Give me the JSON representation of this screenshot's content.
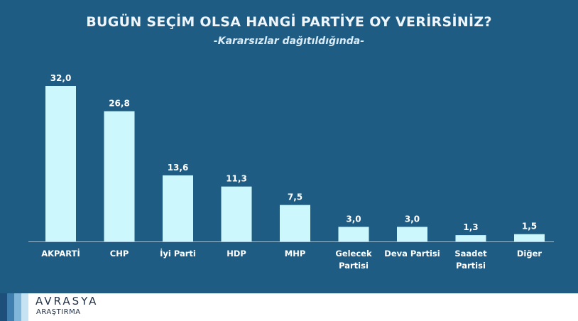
{
  "chart_data": {
    "type": "bar",
    "title": "BUGÜN SEÇİM OLSA HANGİ PARTİYE OY VERİRSİNİZ?",
    "subtitle": "-Kararsızlar dağıtıldığında-",
    "categories": [
      "AKPARTİ",
      "CHP",
      "İyi Parti",
      "HDP",
      "MHP",
      "Gelecek Partisi",
      "Deva Partisi",
      "Saadet Partisi",
      "Diğer"
    ],
    "category_lines": [
      [
        "AKPARTİ"
      ],
      [
        "CHP"
      ],
      [
        "İyi Parti"
      ],
      [
        "HDP"
      ],
      [
        "MHP"
      ],
      [
        "Gelecek",
        "Partisi"
      ],
      [
        "Deva Partisi"
      ],
      [
        "Saadet",
        "Partisi"
      ],
      [
        "Diğer"
      ]
    ],
    "values": [
      32.0,
      26.8,
      13.6,
      11.3,
      7.5,
      3.0,
      3.0,
      1.3,
      1.5
    ],
    "value_labels": [
      "32,0",
      "26,8",
      "13,6",
      "11,3",
      "7,5",
      "3,0",
      "3,0",
      "1,3",
      "1,5"
    ],
    "ylim": [
      0,
      32
    ],
    "grid": false,
    "bar_color": "#ccf8fd",
    "background_color": "#1f5c84"
  },
  "branding": {
    "name": "AVRASYA",
    "subname": "ARAŞTIRMA"
  }
}
